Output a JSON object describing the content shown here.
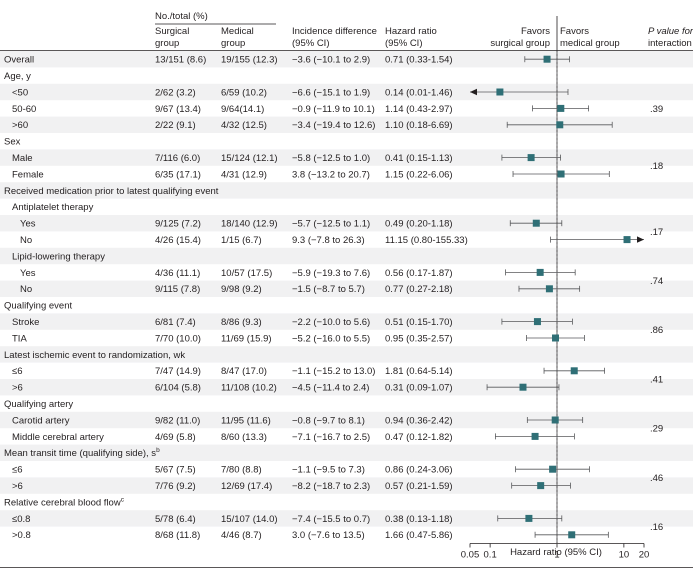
{
  "header": {
    "no_total": "No./total (%)",
    "col_surgical": [
      "Surgical",
      "group"
    ],
    "col_medical": [
      "Medical",
      "group"
    ],
    "col_incidence": [
      "Incidence difference",
      "(95% CI)"
    ],
    "col_hazard": [
      "Hazard ratio",
      "(95% CI)"
    ],
    "favors_surgical": [
      "Favors",
      "surgical group"
    ],
    "favors_medical": [
      "Favors",
      "medical group"
    ],
    "p_interaction": [
      "P value for",
      "interaction"
    ]
  },
  "colors": {
    "marker": "#2f6f76",
    "text": "#231f20",
    "band": "#f1f1f2",
    "rule": "#231f20"
  },
  "chart_data": {
    "type": "forest",
    "xlabel": "Hazard ratio (95% CI)",
    "x_scale": "log",
    "xlim": [
      0.05,
      20
    ],
    "x_ticks": [
      0.05,
      0.1,
      1,
      10,
      20
    ],
    "x_tick_labels": [
      "0.05",
      "0.1",
      "1",
      "10",
      "20"
    ],
    "reference_line": 1,
    "rows": [
      {
        "kind": "item",
        "indent": 0,
        "label": "Overall",
        "surgical": "13/151 (8.6)",
        "medical": "19/155 (12.3)",
        "incidence": "−3.6 (−10.1 to 2.9)",
        "hr_text": "0.71 (0.33-1.54)",
        "hr": 0.71,
        "lo": 0.33,
        "hi": 1.54
      },
      {
        "kind": "header",
        "indent": 0,
        "label": "Age, y"
      },
      {
        "kind": "item",
        "indent": 1,
        "label": "<50",
        "surgical": "2/62 (3.2)",
        "medical": "6/59 (10.2)",
        "incidence": "−6.6 (−15.1 to 1.9)",
        "hr_text": "0.14 (0.01-1.46)",
        "hr": 0.14,
        "lo": 0.01,
        "hi": 1.46
      },
      {
        "kind": "item",
        "indent": 1,
        "label": "50-60",
        "surgical": "9/67 (13.4)",
        "medical": "9/64(14.1)",
        "incidence": "−0.9 (−11.9 to 10.1)",
        "hr_text": "1.14 (0.43-2.97)",
        "hr": 1.14,
        "lo": 0.43,
        "hi": 2.97
      },
      {
        "kind": "item",
        "indent": 1,
        "label": ">60",
        "surgical": "2/22 (9.1)",
        "medical": "4/32 (12.5)",
        "incidence": "−3.4 (−19.4 to 12.6)",
        "hr_text": "1.10 (0.18-6.69)",
        "hr": 1.1,
        "lo": 0.18,
        "hi": 6.69
      },
      {
        "kind": "header",
        "indent": 0,
        "label": "Sex"
      },
      {
        "kind": "item",
        "indent": 1,
        "label": "Male",
        "surgical": "7/116 (6.0)",
        "medical": "15/124 (12.1)",
        "incidence": "−5.8 (−12.5 to 1.0)",
        "hr_text": "0.41 (0.15-1.13)",
        "hr": 0.41,
        "lo": 0.15,
        "hi": 1.13
      },
      {
        "kind": "item",
        "indent": 1,
        "label": "Female",
        "surgical": "6/35 (17.1)",
        "medical": "4/31 (12.9)",
        "incidence": "3.8 (−13.2 to 20.7)",
        "hr_text": "1.15 (0.22-6.06)",
        "hr": 1.15,
        "lo": 0.22,
        "hi": 6.06
      },
      {
        "kind": "header",
        "indent": 0,
        "label": "Received medication prior to latest qualifying event"
      },
      {
        "kind": "header",
        "indent": 1,
        "label": "Antiplatelet therapy"
      },
      {
        "kind": "item",
        "indent": 2,
        "label": "Yes",
        "surgical": "9/125 (7.2)",
        "medical": "18/140 (12.9)",
        "incidence": "−5.7 (−12.5 to 1.1)",
        "hr_text": "0.49 (0.20-1.18)",
        "hr": 0.49,
        "lo": 0.2,
        "hi": 1.18
      },
      {
        "kind": "item",
        "indent": 2,
        "label": "No",
        "surgical": "4/26 (15.4)",
        "medical": "1/15 (6.7)",
        "incidence": "9.3 (−7.8 to 26.3)",
        "hr_text": "11.15 (0.80-155.33)",
        "hr": 11.15,
        "lo": 0.8,
        "hi": 155.33
      },
      {
        "kind": "header",
        "indent": 1,
        "label": "Lipid-lowering therapy"
      },
      {
        "kind": "item",
        "indent": 2,
        "label": "Yes",
        "surgical": "4/36 (11.1)",
        "medical": "10/57 (17.5)",
        "incidence": "−5.9 (−19.3 to 7.6)",
        "hr_text": "0.56 (0.17-1.87)",
        "hr": 0.56,
        "lo": 0.17,
        "hi": 1.87
      },
      {
        "kind": "item",
        "indent": 2,
        "label": "No",
        "surgical": "9/115 (7.8)",
        "medical": "9/98 (9.2)",
        "incidence": "−1.5 (−8.7 to 5.7)",
        "hr_text": "0.77 (0.27-2.18)",
        "hr": 0.77,
        "lo": 0.27,
        "hi": 2.18
      },
      {
        "kind": "header",
        "indent": 0,
        "label": "Qualifying event"
      },
      {
        "kind": "item",
        "indent": 1,
        "label": "Stroke",
        "surgical": "6/81 (7.4)",
        "medical": "8/86 (9.3)",
        "incidence": "−2.2 (−10.0 to 5.6)",
        "hr_text": "0.51 (0.15-1.70)",
        "hr": 0.51,
        "lo": 0.15,
        "hi": 1.7
      },
      {
        "kind": "item",
        "indent": 1,
        "label": "TIA",
        "surgical": "7/70 (10.0)",
        "medical": "11/69 (15.9)",
        "incidence": "−5.2 (−16.0 to 5.5)",
        "hr_text": "0.95 (0.35-2.57)",
        "hr": 0.95,
        "lo": 0.35,
        "hi": 2.57
      },
      {
        "kind": "header",
        "indent": 0,
        "label": "Latest ischemic event to randomization, wk"
      },
      {
        "kind": "item",
        "indent": 1,
        "label": "≤6",
        "surgical": "7/47 (14.9)",
        "medical": "8/47 (17.0)",
        "incidence": "−1.1 (−15.2 to 13.0)",
        "hr_text": "1.81 (0.64-5.14)",
        "hr": 1.81,
        "lo": 0.64,
        "hi": 5.14
      },
      {
        "kind": "item",
        "indent": 1,
        "label": ">6",
        "surgical": "6/104 (5.8)",
        "medical": "11/108 (10.2)",
        "incidence": "−4.5 (−11.4 to 2.4)",
        "hr_text": "0.31 (0.09-1.07)",
        "hr": 0.31,
        "lo": 0.09,
        "hi": 1.07
      },
      {
        "kind": "header",
        "indent": 0,
        "label": "Qualifying artery"
      },
      {
        "kind": "item",
        "indent": 1,
        "label": "Carotid artery",
        "surgical": "9/82 (11.0)",
        "medical": "11/95 (11.6)",
        "incidence": "−0.8 (−9.7 to 8.1)",
        "hr_text": "0.94 (0.36-2.42)",
        "hr": 0.94,
        "lo": 0.36,
        "hi": 2.42
      },
      {
        "kind": "item",
        "indent": 1,
        "label": "Middle cerebral artery",
        "surgical": "4/69 (5.8)",
        "medical": "8/60 (13.3)",
        "incidence": "−7.1 (−16.7 to 2.5)",
        "hr_text": "0.47 (0.12-1.82)",
        "hr": 0.47,
        "lo": 0.12,
        "hi": 1.82
      },
      {
        "kind": "header",
        "indent": 0,
        "label": "Mean transit time (qualifying side), s",
        "sup": "b"
      },
      {
        "kind": "item",
        "indent": 1,
        "label": "≤6",
        "surgical": "5/67 (7.5)",
        "medical": "7/80 (8.8)",
        "incidence": "−1.1 (−9.5 to 7.3)",
        "hr_text": "0.86 (0.24-3.06)",
        "hr": 0.86,
        "lo": 0.24,
        "hi": 3.06
      },
      {
        "kind": "item",
        "indent": 1,
        "label": ">6",
        "surgical": "7/76 (9.2)",
        "medical": "12/69 (17.4)",
        "incidence": "−8.2 (−18.7 to 2.3)",
        "hr_text": "0.57 (0.21-1.59)",
        "hr": 0.57,
        "lo": 0.21,
        "hi": 1.59
      },
      {
        "kind": "header",
        "indent": 0,
        "label": "Relative cerebral blood flow",
        "sup": "c"
      },
      {
        "kind": "item",
        "indent": 1,
        "label": "≤0.8",
        "surgical": "5/78 (6.4)",
        "medical": "15/107 (14.0)",
        "incidence": "−7.4 (−15.5 to 0.7)",
        "hr_text": "0.38 (0.13-1.18)",
        "hr": 0.38,
        "lo": 0.13,
        "hi": 1.18
      },
      {
        "kind": "item",
        "indent": 1,
        "label": ">0.8",
        "surgical": "8/68 (11.8)",
        "medical": "4/46 (8.7)",
        "incidence": "3.0 (−7.6 to 13.5)",
        "hr_text": "1.66 (0.47-5.86)",
        "hr": 1.66,
        "lo": 0.47,
        "hi": 5.86
      }
    ],
    "p_values": [
      {
        "rows": [
          2,
          4
        ],
        "value": ".39"
      },
      {
        "rows": [
          6,
          7
        ],
        "value": ".18"
      },
      {
        "rows": [
          10,
          11
        ],
        "value": ".17"
      },
      {
        "rows": [
          13,
          14
        ],
        "value": ".74"
      },
      {
        "rows": [
          16,
          17
        ],
        "value": ".86"
      },
      {
        "rows": [
          19,
          20
        ],
        "value": ".41"
      },
      {
        "rows": [
          22,
          23
        ],
        "value": ".29"
      },
      {
        "rows": [
          25,
          26
        ],
        "value": ".46"
      },
      {
        "rows": [
          28,
          29
        ],
        "value": ".16"
      }
    ]
  }
}
